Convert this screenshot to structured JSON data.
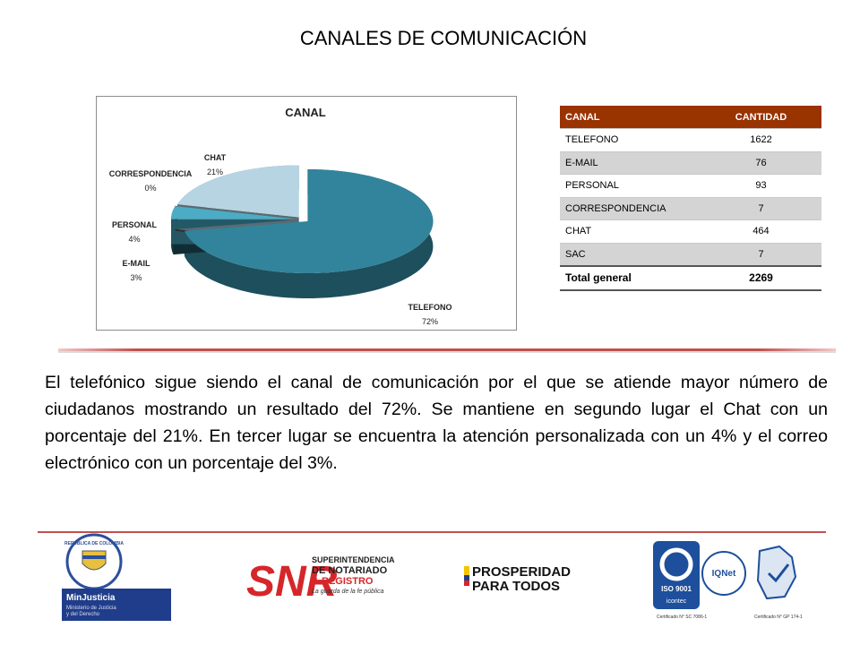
{
  "title": "CANALES DE COMUNICACIÓN",
  "chart_data": {
    "type": "pie",
    "title": "CANAL",
    "categories": [
      "TELEFONO",
      "E-MAIL",
      "PERSONAL",
      "CORRESPONDENCIA",
      "CHAT"
    ],
    "values": [
      72,
      3,
      4,
      0,
      21
    ],
    "value_labels": [
      "72%",
      "3%",
      "4%",
      "0%",
      "21%"
    ],
    "colors": [
      "#31849b",
      "#215967",
      "#4bacc6",
      "#595959",
      "#b7d4e3"
    ]
  },
  "table": {
    "header": [
      "CANAL",
      "CANTIDAD"
    ],
    "rows": [
      [
        "TELEFONO",
        1622
      ],
      [
        "E-MAIL",
        76
      ],
      [
        "PERSONAL",
        93
      ],
      [
        "CORRESPONDENCIA",
        7
      ],
      [
        "CHAT",
        464
      ],
      [
        "SAC",
        7
      ]
    ],
    "total": [
      "Total general",
      2269
    ]
  },
  "paragraph": "El telefónico sigue siendo el canal de comunicación por el que se atiende mayor número de ciudadanos mostrando un resultado del 72%. Se mantiene en segundo lugar el Chat con un porcentaje del 21%. En tercer lugar se encuentra la atención personalizada con un 4% y el correo electrónico con un porcentaje del 3%.",
  "logos": {
    "seal": "REPÚBLICA DE COLOMBIA",
    "minjusticia": "MinJusticia",
    "ministerio": [
      "Ministerio de Justicia",
      "y del Derecho"
    ],
    "snr": "SNR",
    "snr_text": [
      "SUPERINTENDENCIA",
      "DE NOTARIADO",
      "& REGISTRO",
      "La guarda de la fe pública"
    ],
    "prosperidad": [
      "PROSPERIDAD",
      "PARA TODOS"
    ],
    "iso": "ISO 9001",
    "icontec": "icontec",
    "iqnet": "IQNet",
    "cert1": "Certificado N° SC 7086-1",
    "cert2": "Certificado N° GP 174-1"
  }
}
